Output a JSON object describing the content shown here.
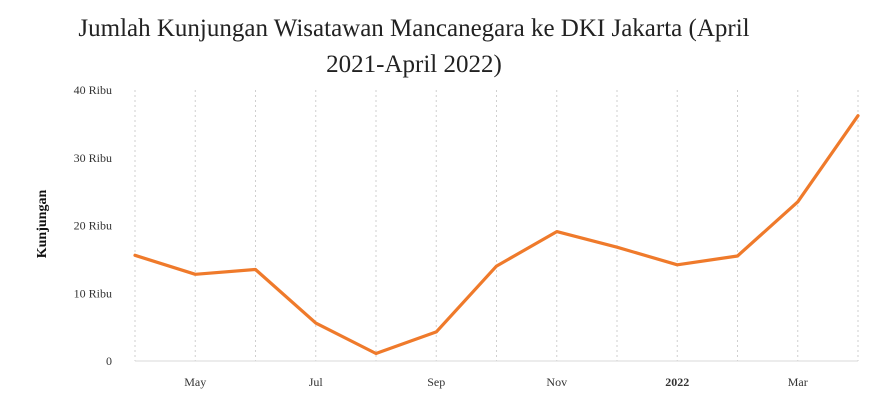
{
  "chart_data": {
    "type": "line",
    "title_lines": [
      "Jumlah Kunjungan Wisatawan Mancanegara ke DKI Jakarta (April",
      "2021-April 2022)"
    ],
    "ylabel": "Kunjungan",
    "xlabel": "",
    "x": [
      "2021-04",
      "2021-05",
      "2021-06",
      "2021-07",
      "2021-08",
      "2021-09",
      "2021-10",
      "2021-11",
      "2021-12",
      "2022-01",
      "2022-02",
      "2022-03",
      "2022-04"
    ],
    "series": [
      {
        "values": [
          15600,
          12800,
          13500,
          5600,
          1100,
          4300,
          14000,
          19100,
          16800,
          14200,
          15500,
          23500,
          36200
        ]
      }
    ],
    "ylim": [
      0,
      40000
    ],
    "yticks": [
      {
        "value": 0,
        "label": "0"
      },
      {
        "value": 10000,
        "label": "10 Ribu"
      },
      {
        "value": 20000,
        "label": "20 Ribu"
      },
      {
        "value": 30000,
        "label": "30 Ribu"
      },
      {
        "value": 40000,
        "label": "40 Ribu"
      }
    ],
    "xticks": [
      {
        "x": "2021-05",
        "label": "May",
        "bold": false
      },
      {
        "x": "2021-07",
        "label": "Jul",
        "bold": false
      },
      {
        "x": "2021-09",
        "label": "Sep",
        "bold": false
      },
      {
        "x": "2021-11",
        "label": "Nov",
        "bold": false
      },
      {
        "x": "2022-01",
        "label": "2022",
        "bold": true
      },
      {
        "x": "2022-03",
        "label": "Mar",
        "bold": false
      }
    ],
    "grid": true,
    "colors": {
      "line": "#ef7a2b",
      "grid": "#cfcfcf"
    }
  }
}
